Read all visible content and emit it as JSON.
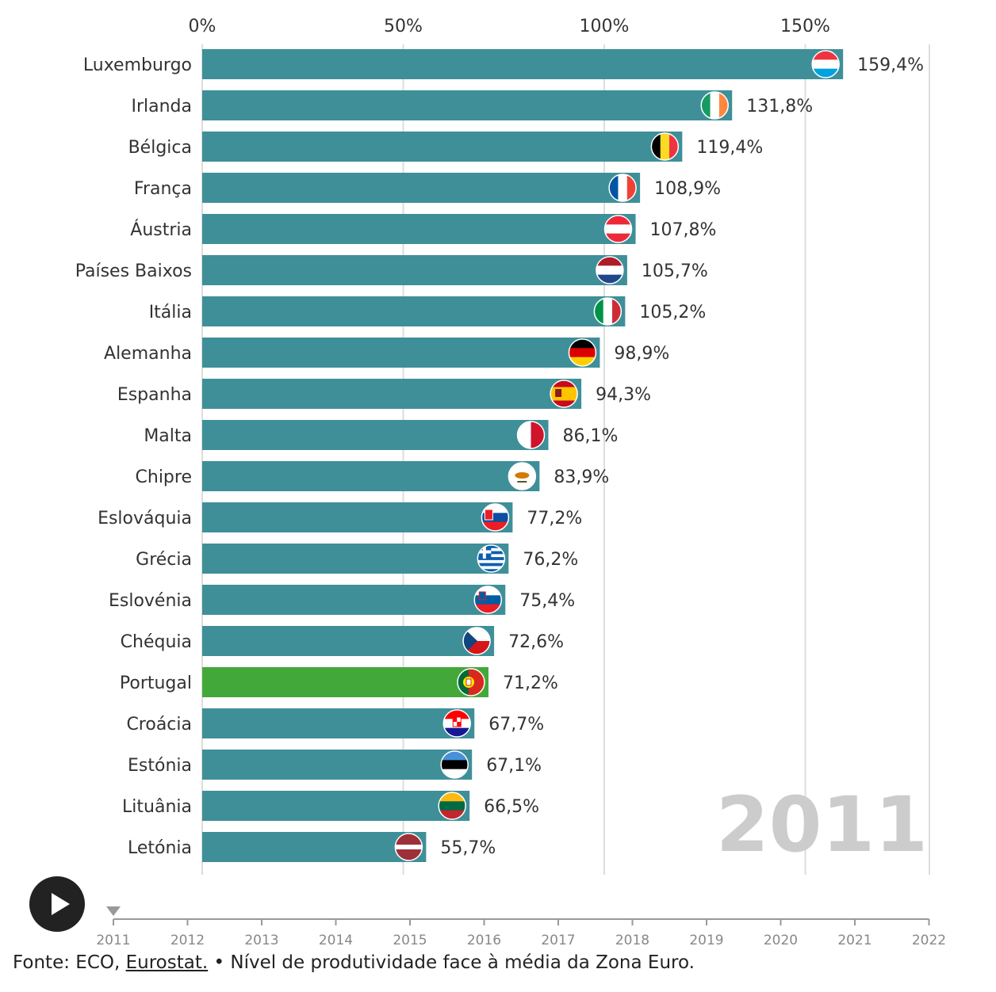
{
  "chart_data": {
    "type": "bar",
    "orientation": "horizontal",
    "x_ticks": [
      "0%",
      "50%",
      "100%",
      "150%"
    ],
    "x_tick_values": [
      0,
      50,
      100,
      150
    ],
    "xlim": [
      0,
      180
    ],
    "grid": true,
    "year_label": "2011",
    "categories": [
      "Luxemburgo",
      "Irlanda",
      "Bélgica",
      "França",
      "Áustria",
      "Países Baixos",
      "Itália",
      "Alemanha",
      "Espanha",
      "Malta",
      "Chipre",
      "Eslováquia",
      "Grécia",
      "Eslovénia",
      "Chéquia",
      "Portugal",
      "Croácia",
      "Estónia",
      "Lituânia",
      "Letónia"
    ],
    "values": [
      159.4,
      131.8,
      119.4,
      108.9,
      107.8,
      105.7,
      105.2,
      98.9,
      94.3,
      86.1,
      83.9,
      77.2,
      76.2,
      75.4,
      72.6,
      71.2,
      67.7,
      67.1,
      66.5,
      55.7
    ],
    "value_labels": [
      "159,4%",
      "131,8%",
      "119,4%",
      "108,9%",
      "107,8%",
      "105,7%",
      "105,2%",
      "98,9%",
      "94,3%",
      "86,1%",
      "83,9%",
      "77,2%",
      "76,2%",
      "75,4%",
      "72,6%",
      "71,2%",
      "67,7%",
      "67,1%",
      "66,5%",
      "55,7%"
    ],
    "flags": [
      "luxembourg-flag-icon",
      "ireland-flag-icon",
      "belgium-flag-icon",
      "france-flag-icon",
      "austria-flag-icon",
      "netherlands-flag-icon",
      "italy-flag-icon",
      "germany-flag-icon",
      "spain-flag-icon",
      "malta-flag-icon",
      "cyprus-flag-icon",
      "slovakia-flag-icon",
      "greece-flag-icon",
      "slovenia-flag-icon",
      "czechia-flag-icon",
      "portugal-flag-icon",
      "croatia-flag-icon",
      "estonia-flag-icon",
      "lithuania-flag-icon",
      "latvia-flag-icon"
    ],
    "highlight": "Portugal",
    "colors": {
      "bar": "#3f8f99",
      "highlight": "#43a83a",
      "grid": "#dddddd",
      "year": "#cccccc"
    }
  },
  "timeline": {
    "years": [
      "2011",
      "2012",
      "2013",
      "2014",
      "2015",
      "2016",
      "2017",
      "2018",
      "2019",
      "2020",
      "2021",
      "2022"
    ],
    "current": "2011",
    "play_icon": "play-icon"
  },
  "source": {
    "prefix": "Fonte: ECO, ",
    "link": "Eurostat.",
    "suffix": " • Nível de produtividade face à média da Zona Euro."
  }
}
